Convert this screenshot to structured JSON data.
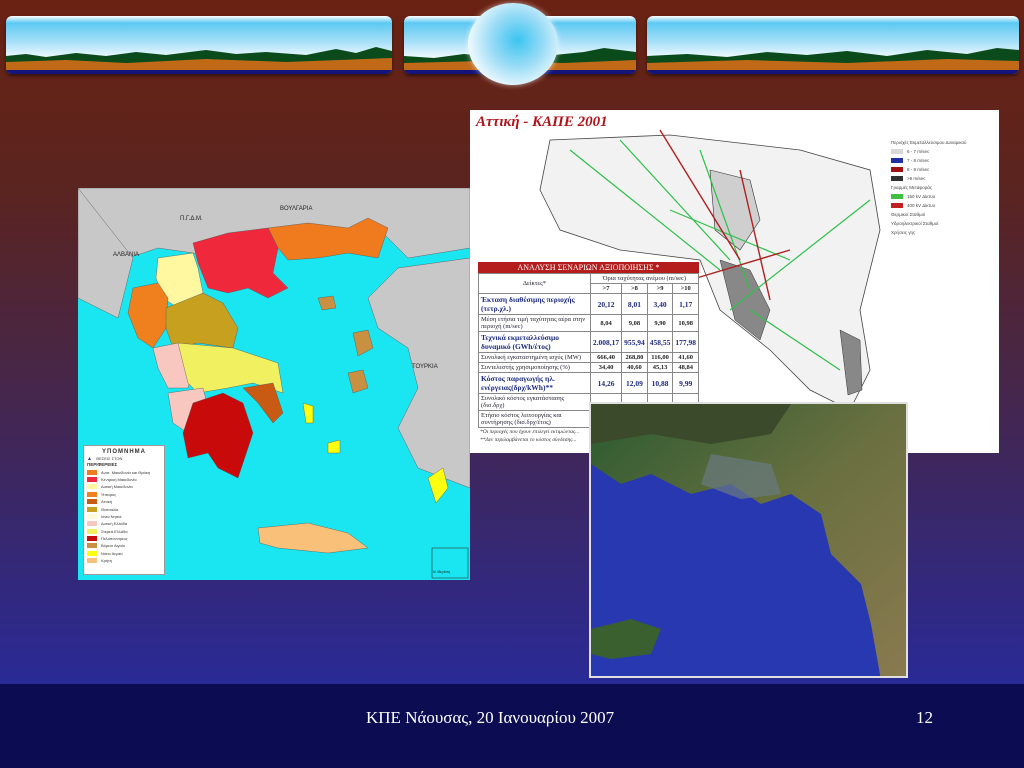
{
  "slide": {
    "footer_text": "ΚΠΕ Νάουσας, 20 Ιανουαρίου 2007",
    "page_number": "12"
  },
  "greece_map": {
    "countries": [
      "ΑΛΒΑΝΙΑ",
      "Π.Γ.Δ.Μ.",
      "ΒΟΥΛΓΑΡΙΑ",
      "ΤΟΥΡΚΙΑ"
    ],
    "legend": {
      "title": "ΥΠΟΜΝΗΜΑ",
      "stations_label": "ΘΕΣΕΙΣ ΣΤΟΝ",
      "regions_title": "ΠΕΡΙΦΕΡΕΙΕΣ",
      "regions": [
        {
          "name": "Ανατ. Μακεδονία και Θράκη",
          "color": "#f07a1e"
        },
        {
          "name": "Κεντρική Μακεδονία",
          "color": "#f0283c"
        },
        {
          "name": "Δυτική Μακεδονία",
          "color": "#fff8a0"
        },
        {
          "name": "Ήπειρος",
          "color": "#f0801e"
        },
        {
          "name": "Αττική",
          "color": "#c85a14"
        },
        {
          "name": "Θεσσαλία",
          "color": "#c8a020"
        },
        {
          "name": "Ιόνια Νησιά",
          "color": "#fffad8"
        },
        {
          "name": "Δυτική Ελλάδα",
          "color": "#f8c8c0"
        },
        {
          "name": "Στερεά Ελλάδα",
          "color": "#f0f060"
        },
        {
          "name": "Πελοπόννησος",
          "color": "#c80a0a"
        },
        {
          "name": "Βόρειο Αιγαίο",
          "color": "#c89040"
        },
        {
          "name": "Νότιο Αιγαίο",
          "color": "#ffff10"
        },
        {
          "name": "Κρήτη",
          "color": "#f8c078"
        }
      ]
    },
    "inset_label": "Ν. Μεγίστη",
    "sea_color": "#19e6f0",
    "land_color": "#c8c8c8"
  },
  "attica_map": {
    "title": "Αττική - ΚΑΠΕ 2001",
    "legend": [
      {
        "label": "Περιοχές Εκμεταλλεύσιμου Δυναμικού",
        "color": ""
      },
      {
        "label": "6 - 7 m/sec",
        "color": "#d8d8d8"
      },
      {
        "label": "7 - 8 m/sec",
        "color": "#2030a0"
      },
      {
        "label": "8 - 9 m/sec",
        "color": "#a01010"
      },
      {
        "label": ">9 m/sec",
        "color": "#303030"
      },
      {
        "label": "Γραμμές Μεταφοράς",
        "color": ""
      },
      {
        "label": "150 kV Δίκτυο",
        "color": "#40c040"
      },
      {
        "label": "400 kV Δίκτυο",
        "color": "#c02020"
      },
      {
        "label": "Θερμικοί Σταθμοί",
        "color": ""
      },
      {
        "label": "Υδροηλεκτρικοί Σταθμοί",
        "color": ""
      },
      {
        "label": "Χρήσεις γης",
        "color": ""
      }
    ],
    "table": {
      "title": "ΑΝΑΛΥΣΗ ΣΕΝΑΡΙΩΝ ΑΞΙΟΠΟΙΗΣΗΣ *",
      "col_header": "Δείκτες*",
      "group_header": "Όρια ταχύτητας ανέμου (m/sec)",
      "thresholds": [
        ">7",
        ">8",
        ">9",
        ">10"
      ],
      "rows": [
        {
          "label": "Έκταση διαθέσιμης περιοχής (τετρ.χλ.)",
          "values": [
            "20,12",
            "8,01",
            "3,40",
            "1,17"
          ],
          "big": true
        },
        {
          "label": "Μέση ετήσια τιμή ταχύτητας αέρα στην περιοχή (m/sec)",
          "values": [
            "8,04",
            "9,08",
            "9,90",
            "10,98"
          ],
          "big": false
        },
        {
          "label": "Τεχνικά εκμεταλλεύσιμο δυναμικό (GWh/έτος)",
          "values": [
            "2.008,17",
            "955,94",
            "458,55",
            "177,98"
          ],
          "big": true
        },
        {
          "label": "Συνολική εγκαταστημένη ισχύς (MW)",
          "values": [
            "666,40",
            "268,80",
            "116,00",
            "41,60"
          ],
          "big": false
        },
        {
          "label": "Συντελεστής χρησιμοποίησης (%)",
          "values": [
            "34,40",
            "40,60",
            "45,13",
            "48,84"
          ],
          "big": false
        },
        {
          "label": "Κόστος παραγωγής ηλ. ενέργειας(δρχ/kWh)**",
          "values": [
            "14,26",
            "12,09",
            "10,88",
            "9,99"
          ],
          "big": true
        },
        {
          "label": "Συνολικό κόστος εγκατάστασης (δισ.δρχ)",
          "values": [
            "",
            "",
            "",
            ""
          ],
          "big": false
        },
        {
          "label": "Ετήσιο κόστος λειτουργίας και συντήρησης (δισ.δρχ/έτος)",
          "values": [
            "",
            "",
            "",
            ""
          ],
          "big": false
        }
      ],
      "notes": [
        "*Οι περιοχές που έχουν επιλεγεί εκτιμώντας...",
        "**Δεν περιλαμβάνεται το κόστος σύνδεσης..."
      ]
    }
  }
}
